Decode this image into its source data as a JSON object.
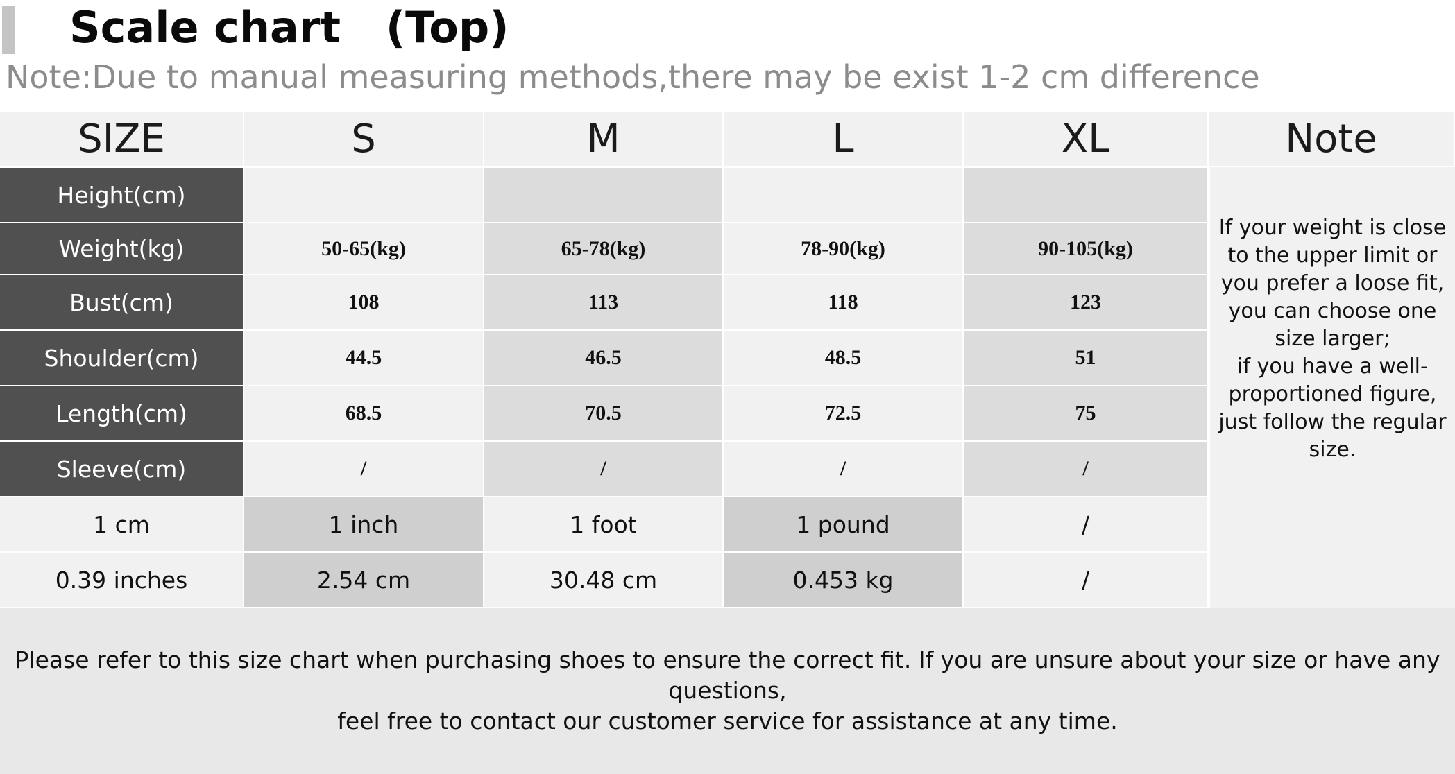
{
  "header": {
    "title": "Scale chart   (Top)",
    "note": "Note:Due to manual measuring methods,there may be exist 1-2 cm difference"
  },
  "table": {
    "columns": [
      "SIZE",
      "S",
      "M",
      "L",
      "XL",
      "Note"
    ],
    "rows": [
      {
        "label": "Height(cm)",
        "values": [
          "",
          "",
          "",
          ""
        ]
      },
      {
        "label": "Weight(kg)",
        "values": [
          "50-65(kg)",
          "65-78(kg)",
          "78-90(kg)",
          "90-105(kg)"
        ]
      },
      {
        "label": "Bust(cm)",
        "values": [
          "108",
          "113",
          "118",
          "123"
        ]
      },
      {
        "label": "Shoulder(cm)",
        "values": [
          "44.5",
          "46.5",
          "48.5",
          "51"
        ]
      },
      {
        "label": "Length(cm)",
        "values": [
          "68.5",
          "70.5",
          "72.5",
          "75"
        ]
      },
      {
        "label": "Sleeve(cm)",
        "values": [
          "/",
          "/",
          "/",
          "/"
        ]
      }
    ],
    "conversions": [
      [
        "1 cm",
        "1 inch",
        "1 foot",
        "1 pound",
        "/"
      ],
      [
        "0.39 inches",
        "2.54 cm",
        "30.48 cm",
        "0.453 kg",
        "/"
      ]
    ],
    "note_lines": [
      "If your weight is close to the upper limit or you prefer a loose fit,",
      "you can choose one size larger;",
      "if you have a well-proportioned figure, just follow the regular size."
    ]
  },
  "footer": {
    "line1": "Please refer to this size chart when purchasing shoes to ensure the correct fit. If you are unsure about your size or have any questions,",
    "line2": "feel free to contact our customer service for assistance at any time."
  },
  "colors": {
    "label_bg": "#505050",
    "light_cell": "#f1f1f1",
    "mid_cell": "#dcdcdc",
    "dark_cell": "#cfcfcf",
    "note_text": "#8c8c8c"
  }
}
